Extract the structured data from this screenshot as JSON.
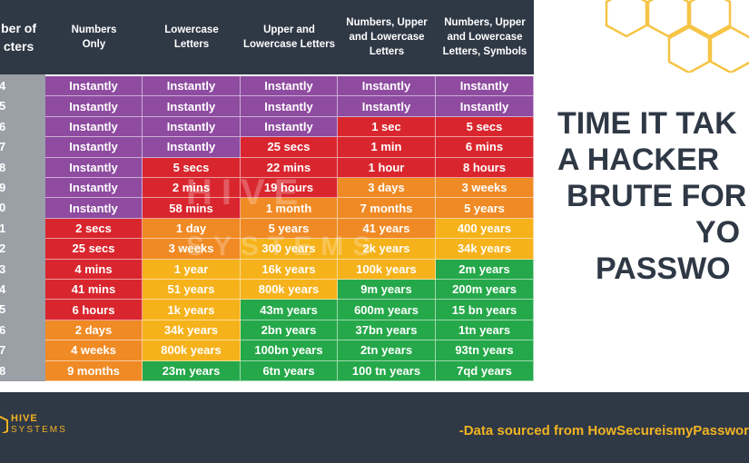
{
  "header": {
    "columns": [
      "ber of\ncters",
      "Numbers\nOnly",
      "Lowercase\nLetters",
      "Upper and\nLowercase Letters",
      "Numbers, Upper\nand Lowercase\nLetters",
      "Numbers, Upper\nand Lowercase\nLetters, Symbols"
    ]
  },
  "rows": [
    {
      "label": "4",
      "cells": [
        "Instantly",
        "Instantly",
        "Instantly",
        "Instantly",
        "Instantly"
      ]
    },
    {
      "label": "5",
      "cells": [
        "Instantly",
        "Instantly",
        "Instantly",
        "Instantly",
        "Instantly"
      ]
    },
    {
      "label": "6",
      "cells": [
        "Instantly",
        "Instantly",
        "Instantly",
        "1 sec",
        "5 secs"
      ]
    },
    {
      "label": "7",
      "cells": [
        "Instantly",
        "Instantly",
        "25 secs",
        "1 min",
        "6 mins"
      ]
    },
    {
      "label": "8",
      "cells": [
        "Instantly",
        "5 secs",
        "22 mins",
        "1 hour",
        "8 hours"
      ]
    },
    {
      "label": "9",
      "cells": [
        "Instantly",
        "2 mins",
        "19 hours",
        "3 days",
        "3 weeks"
      ]
    },
    {
      "label": "0",
      "cells": [
        "Instantly",
        "58 mins",
        "1 month",
        "7 months",
        "5 years"
      ]
    },
    {
      "label": "1",
      "cells": [
        "2 secs",
        "1 day",
        "5 years",
        "41 years",
        "400 years"
      ]
    },
    {
      "label": "2",
      "cells": [
        "25 secs",
        "3 weeks",
        "300 years",
        "2k years",
        "34k years"
      ]
    },
    {
      "label": "3",
      "cells": [
        "4 mins",
        "1 year",
        "16k years",
        "100k years",
        "2m years"
      ]
    },
    {
      "label": "4",
      "cells": [
        "41 mins",
        "51 years",
        "800k years",
        "9m years",
        "200m years"
      ]
    },
    {
      "label": "5",
      "cells": [
        "6 hours",
        "1k years",
        "43m years",
        "600m years",
        "15 bn years"
      ]
    },
    {
      "label": "6",
      "cells": [
        "2 days",
        "34k years",
        "2bn years",
        "37bn years",
        "1tn years"
      ]
    },
    {
      "label": "7",
      "cells": [
        "4 weeks",
        "800k years",
        "100bn years",
        "2tn years",
        "93tn years"
      ]
    },
    {
      "label": "8",
      "cells": [
        "9 months",
        "23m years",
        "6tn years",
        "100 tn years",
        "7qd years"
      ]
    }
  ],
  "colors": {
    "purple": "#8e4ba0",
    "red": "#d9262e",
    "orange": "#f08a24",
    "yellow": "#f6b21a",
    "green": "#25a84a",
    "dark": "#2f3845",
    "gold": "#f0b323"
  },
  "cell_colors": [
    [
      "purple",
      "purple",
      "purple",
      "purple",
      "purple"
    ],
    [
      "purple",
      "purple",
      "purple",
      "purple",
      "purple"
    ],
    [
      "purple",
      "purple",
      "purple",
      "red",
      "red"
    ],
    [
      "purple",
      "purple",
      "red",
      "red",
      "red"
    ],
    [
      "purple",
      "red",
      "red",
      "red",
      "red"
    ],
    [
      "purple",
      "red",
      "red",
      "orange",
      "orange"
    ],
    [
      "purple",
      "red",
      "orange",
      "orange",
      "orange"
    ],
    [
      "red",
      "orange",
      "orange",
      "orange",
      "yellow"
    ],
    [
      "red",
      "orange",
      "yellow",
      "yellow",
      "yellow"
    ],
    [
      "red",
      "yellow",
      "yellow",
      "yellow",
      "green"
    ],
    [
      "red",
      "yellow",
      "yellow",
      "green",
      "green"
    ],
    [
      "red",
      "yellow",
      "green",
      "green",
      "green"
    ],
    [
      "orange",
      "yellow",
      "green",
      "green",
      "green"
    ],
    [
      "orange",
      "yellow",
      "green",
      "green",
      "green"
    ],
    [
      "orange",
      "green",
      "green",
      "green",
      "green"
    ]
  ],
  "title_lines": [
    "TIME IT TAK",
    "A HACKER",
    "BRUTE FOR",
    "YO",
    "PASSWO"
  ],
  "footer": {
    "source": "-Data sourced from HowSecureismyPasswor"
  },
  "logo": {
    "top": "HIVE",
    "bottom": "SYSTEMS"
  },
  "watermark": {
    "top": "HIVE",
    "bottom": "SYSTEMS"
  }
}
